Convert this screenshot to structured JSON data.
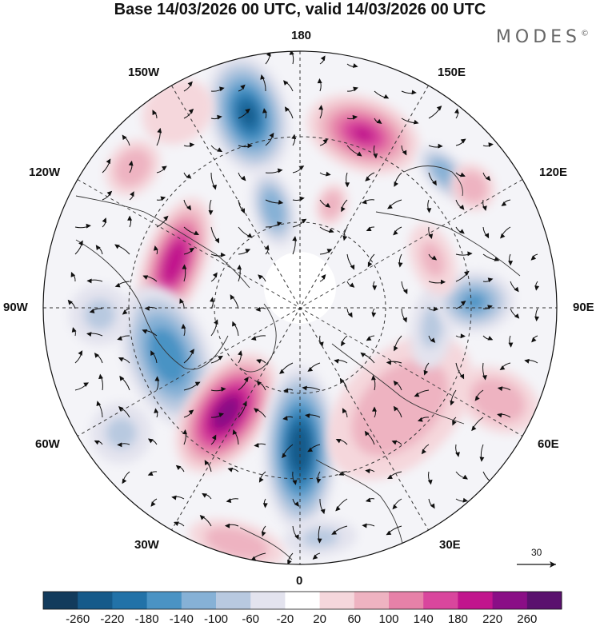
{
  "title": "Base 14/03/2026 00 UTC, valid 14/03/2026 00 UTC",
  "brand": "MODES",
  "brand_mark": "©",
  "longitudes": {
    "top": "180",
    "bottom": "0",
    "left": "90W",
    "right": "90E",
    "upper_left_1": "150W",
    "upper_left_2": "120W",
    "upper_right_1": "150E",
    "upper_right_2": "120E",
    "lower_left_1": "60W",
    "lower_left_2": "30W",
    "lower_right_1": "60E",
    "lower_right_2": "30E"
  },
  "vector_scale": "30",
  "colorbar": {
    "labels": [
      "-260",
      "-220",
      "-180",
      "-140",
      "-100",
      "-60",
      "-20",
      "20",
      "60",
      "100",
      "140",
      "180",
      "220",
      "260"
    ],
    "colors": [
      "#123b5c",
      "#165a8a",
      "#2272a8",
      "#4a93c4",
      "#86b1d6",
      "#b8c9e0",
      "#e3e3ee",
      "#ffffff",
      "#f5d7dc",
      "#eeb3c1",
      "#e681a8",
      "#d9469d",
      "#c1158d",
      "#8a0e86",
      "#5a106e"
    ]
  },
  "anomalies": [
    {
      "lon": -165,
      "colat": 0.78,
      "rx": 0.13,
      "ry": 0.2,
      "value": -230
    },
    {
      "lon": -165,
      "colat": 0.4,
      "rx": 0.07,
      "ry": 0.13,
      "value": -130
    },
    {
      "lon": 160,
      "colat": 0.72,
      "rx": 0.19,
      "ry": 0.12,
      "value": 190
    },
    {
      "lon": 163,
      "colat": 0.42,
      "rx": 0.05,
      "ry": 0.07,
      "value": 80
    },
    {
      "lon": 133,
      "colat": 0.77,
      "rx": 0.11,
      "ry": 0.06,
      "value": -120
    },
    {
      "lon": -110,
      "colat": 0.52,
      "rx": 0.22,
      "ry": 0.1,
      "value": 200
    },
    {
      "lon": -130,
      "colat": 0.85,
      "rx": 0.1,
      "ry": 0.08,
      "value": 90
    },
    {
      "lon": -148,
      "colat": 0.9,
      "rx": 0.12,
      "ry": 0.1,
      "value": 60
    },
    {
      "lon": -70,
      "colat": 0.55,
      "rx": 0.24,
      "ry": 0.14,
      "value": -160
    },
    {
      "lon": -88,
      "colat": 0.78,
      "rx": 0.1,
      "ry": 0.1,
      "value": -60
    },
    {
      "lon": -35,
      "colat": 0.5,
      "rx": 0.13,
      "ry": 0.22,
      "value": 250
    },
    {
      "lon": 0,
      "colat": 0.55,
      "rx": 0.12,
      "ry": 0.27,
      "value": -240
    },
    {
      "lon": 5,
      "colat": 0.9,
      "rx": 0.12,
      "ry": 0.06,
      "value": -60
    },
    {
      "lon": -15,
      "colat": 0.95,
      "rx": 0.16,
      "ry": 0.07,
      "value": 80
    },
    {
      "lon": 45,
      "colat": 0.55,
      "rx": 0.28,
      "ry": 0.18,
      "value": 100
    },
    {
      "lon": 65,
      "colat": 0.85,
      "rx": 0.1,
      "ry": 0.14,
      "value": 90
    },
    {
      "lon": 82,
      "colat": 0.52,
      "rx": 0.14,
      "ry": 0.07,
      "value": -60
    },
    {
      "lon": 92,
      "colat": 0.68,
      "rx": 0.1,
      "ry": 0.13,
      "value": -140
    },
    {
      "lon": 110,
      "colat": 0.55,
      "rx": 0.12,
      "ry": 0.07,
      "value": 70
    },
    {
      "lon": 125,
      "colat": 0.82,
      "rx": 0.08,
      "ry": 0.07,
      "value": 80
    },
    {
      "lon": -55,
      "colat": 0.85,
      "rx": 0.1,
      "ry": 0.1,
      "value": -60
    }
  ]
}
